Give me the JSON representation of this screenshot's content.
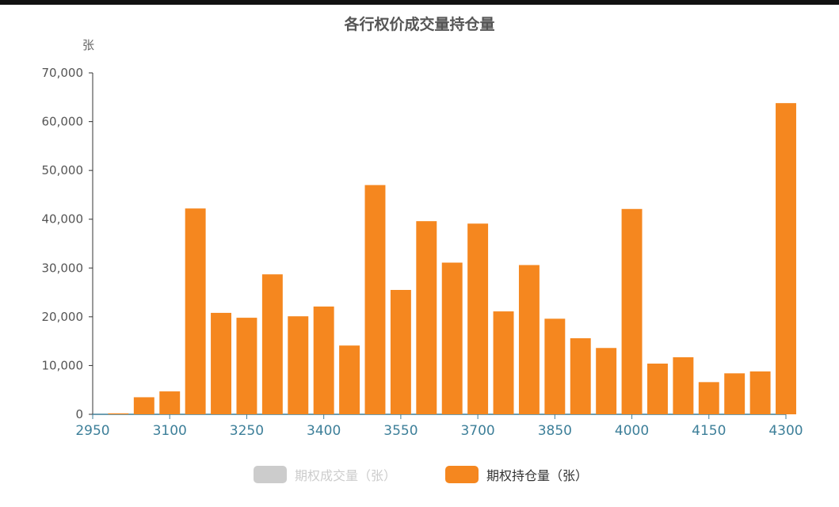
{
  "chart_data": {
    "type": "bar",
    "title": "各行权价成交量持仓量",
    "y_unit": "张",
    "x_ticks": [
      "2950",
      "3100",
      "3250",
      "3400",
      "3550",
      "3700",
      "3850",
      "4000",
      "4150",
      "4300"
    ],
    "y_ticks": [
      "0",
      "10,000",
      "20,000",
      "30,000",
      "40,000",
      "50,000",
      "60,000",
      "70,000"
    ],
    "ylim": [
      0,
      70000
    ],
    "xlim": [
      2950,
      4300
    ],
    "grid": false,
    "legend_position": "bottom",
    "series": [
      {
        "name": "期权成交量（张）",
        "color": "#cccccc",
        "active": false,
        "x": [],
        "values": []
      },
      {
        "name": "期权持仓量（张）",
        "color": "#f5871f",
        "active": true,
        "x": [
          3000,
          3050,
          3100,
          3150,
          3200,
          3250,
          3300,
          3350,
          3400,
          3450,
          3500,
          3550,
          3600,
          3650,
          3700,
          3750,
          3800,
          3850,
          3900,
          3950,
          4000,
          4050,
          4100,
          4150,
          4200,
          4250,
          4300
        ],
        "values": [
          200,
          3500,
          4700,
          42200,
          20800,
          19800,
          28700,
          20100,
          22100,
          14100,
          47000,
          25500,
          39600,
          31100,
          39100,
          21100,
          30600,
          19600,
          15600,
          13600,
          42100,
          10400,
          11700,
          6600,
          8400,
          8800,
          63800
        ]
      }
    ]
  },
  "legend": [
    {
      "label": "期权成交量（张）",
      "color": "#cccccc",
      "text_color": "#cccccc"
    },
    {
      "label": "期权持仓量（张）",
      "color": "#f5871f",
      "text_color": "#333333"
    }
  ]
}
